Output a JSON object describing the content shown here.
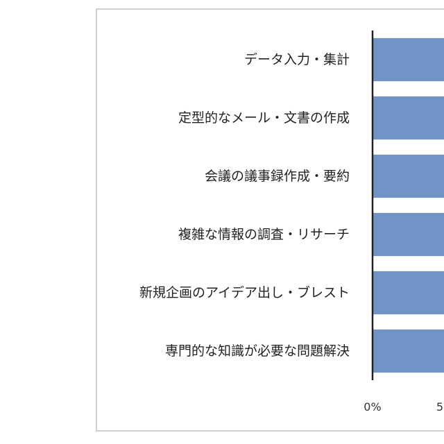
{
  "chart_data": {
    "type": "bar",
    "orientation": "horizontal",
    "categories": [
      "データ入力・集計",
      "定型的なメール・文書の作成",
      "会議の議事録作成・要約",
      "複雑な情報の調査・リサーチ",
      "新規企画のアイデア出し・ブレスト",
      "専門的な知識が必要な問題解決"
    ],
    "values": [
      null,
      null,
      null,
      null,
      null,
      null
    ],
    "x_tick_labels": [
      "0%",
      "5"
    ],
    "bar_color": "#7094c6",
    "grid": false,
    "legend": "none"
  }
}
